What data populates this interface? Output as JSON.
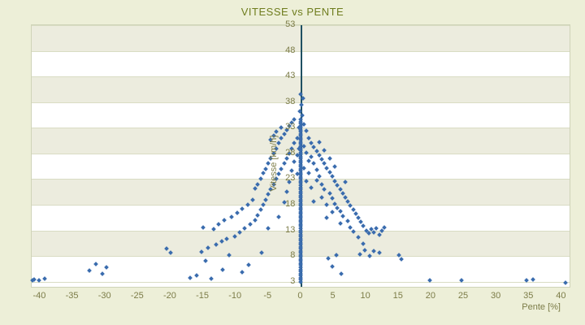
{
  "chart_data": {
    "type": "scatter",
    "title": "VITESSE vs PENTE",
    "xlabel": "Pente [%]",
    "ylabel": "Vitesse [km/h]",
    "xlim": [
      -41.3,
      41.2
    ],
    "ylim": [
      2,
      53
    ],
    "x_ticks": [
      -40,
      -35,
      -30,
      -25,
      -20,
      -15,
      -10,
      -5,
      0,
      5,
      10,
      15,
      20,
      25,
      30,
      35,
      40
    ],
    "y_ticks": [
      3,
      8,
      13,
      18,
      23,
      28,
      33,
      38,
      43,
      48,
      53
    ],
    "grid": "horizontal-bands",
    "legend": "none",
    "marker_color": "#3a6cae",
    "zero_axis_color": "#1f5062",
    "band_color": "#ececde",
    "zero_slope_column": {
      "x": 0,
      "y_min": 3,
      "y_max": 34.8,
      "step": 0.4
    },
    "points": [
      [
        -41.2,
        3.2
      ],
      [
        -40.9,
        3.4
      ],
      [
        -40.2,
        3.3
      ],
      [
        -39.3,
        3.6
      ],
      [
        -32.5,
        5.2
      ],
      [
        -31.5,
        6.4
      ],
      [
        -30.5,
        4.6
      ],
      [
        -29.8,
        5.8
      ],
      [
        -20.6,
        9.4
      ],
      [
        -20,
        8.6
      ],
      [
        -17,
        3.8
      ],
      [
        -16,
        4.2
      ],
      [
        -15.3,
        8.8
      ],
      [
        -15,
        13.6
      ],
      [
        -14.6,
        7
      ],
      [
        -14.2,
        9.6
      ],
      [
        -13.8,
        3.6
      ],
      [
        -13.4,
        13.2
      ],
      [
        -13,
        10.2
      ],
      [
        -12.6,
        14.2
      ],
      [
        -12.2,
        10.8
      ],
      [
        -12,
        5.4
      ],
      [
        -11.8,
        15
      ],
      [
        -11.4,
        11.4
      ],
      [
        -11,
        8.2
      ],
      [
        -10.6,
        15.6
      ],
      [
        -10.2,
        11.8
      ],
      [
        -9.8,
        16.4
      ],
      [
        -9.4,
        12.6
      ],
      [
        -9,
        17.2
      ],
      [
        -9,
        4.8
      ],
      [
        -8.6,
        13.4
      ],
      [
        -8.2,
        18
      ],
      [
        -8,
        6.2
      ],
      [
        -7.8,
        14.2
      ],
      [
        -7.4,
        19
      ],
      [
        -7,
        15
      ],
      [
        -7,
        21.2
      ],
      [
        -6.6,
        16
      ],
      [
        -6.6,
        22
      ],
      [
        -6.2,
        17
      ],
      [
        -6.2,
        23
      ],
      [
        -6,
        8.6
      ],
      [
        -5.8,
        18
      ],
      [
        -5.8,
        24.2
      ],
      [
        -5.4,
        19
      ],
      [
        -5.4,
        25
      ],
      [
        -5,
        20
      ],
      [
        -5,
        26
      ],
      [
        -5,
        13.4
      ],
      [
        -4.6,
        21
      ],
      [
        -4.6,
        27
      ],
      [
        -4.6,
        30.6
      ],
      [
        -4.2,
        22
      ],
      [
        -4.2,
        28
      ],
      [
        -4.2,
        31.4
      ],
      [
        -3.8,
        23
      ],
      [
        -3.8,
        29
      ],
      [
        -3.8,
        32.2
      ],
      [
        -3.4,
        24
      ],
      [
        -3.4,
        30
      ],
      [
        -3.4,
        15.6
      ],
      [
        -3,
        25
      ],
      [
        -3,
        31
      ],
      [
        -3,
        33
      ],
      [
        -2.6,
        26
      ],
      [
        -2.6,
        31.8
      ],
      [
        -2.6,
        18.4
      ],
      [
        -2.2,
        27
      ],
      [
        -2.2,
        32.6
      ],
      [
        -2.2,
        20.6
      ],
      [
        -1.8,
        28
      ],
      [
        -1.8,
        33.4
      ],
      [
        -1.8,
        22.4
      ],
      [
        -1.4,
        29
      ],
      [
        -1.4,
        34
      ],
      [
        -1.4,
        24.6
      ],
      [
        -1,
        30
      ],
      [
        -1,
        34.6
      ],
      [
        -1,
        26.4
      ],
      [
        -0.6,
        31
      ],
      [
        -0.6,
        27.6
      ],
      [
        -0.6,
        24
      ],
      [
        -0.3,
        33
      ],
      [
        -0.3,
        29
      ],
      [
        -0.2,
        36.2
      ],
      [
        0.1,
        37.4
      ],
      [
        0.3,
        38.8
      ],
      [
        -0.1,
        39.6
      ],
      [
        0.2,
        35.4
      ],
      [
        0.4,
        33.6
      ],
      [
        0.4,
        29.4
      ],
      [
        0.4,
        25.2
      ],
      [
        0.8,
        32.4
      ],
      [
        0.8,
        28.2
      ],
      [
        0.8,
        22.6
      ],
      [
        1.2,
        31
      ],
      [
        1.2,
        26.6
      ],
      [
        1.2,
        24.2
      ],
      [
        1.6,
        30
      ],
      [
        1.6,
        27.4
      ],
      [
        1.6,
        21.4
      ],
      [
        2,
        29.2
      ],
      [
        2,
        26
      ],
      [
        2,
        18.6
      ],
      [
        2.4,
        28.4
      ],
      [
        2.4,
        24.8
      ],
      [
        2.4,
        22.8
      ],
      [
        2.8,
        27.6
      ],
      [
        2.8,
        23.6
      ],
      [
        2.8,
        30.2
      ],
      [
        3.2,
        26.8
      ],
      [
        3.2,
        22
      ],
      [
        3.2,
        19.4
      ],
      [
        3.6,
        26
      ],
      [
        3.6,
        28.6
      ],
      [
        3.6,
        21
      ],
      [
        4,
        25.2
      ],
      [
        4,
        18
      ],
      [
        4,
        15.4
      ],
      [
        4.2,
        7.6
      ],
      [
        4.4,
        24.4
      ],
      [
        4.4,
        20.2
      ],
      [
        4.4,
        27
      ],
      [
        4.8,
        23.6
      ],
      [
        4.8,
        16.6
      ],
      [
        4.8,
        19.2
      ],
      [
        4.8,
        6
      ],
      [
        5.2,
        22.6
      ],
      [
        5.2,
        18.2
      ],
      [
        5.2,
        25.4
      ],
      [
        5.4,
        8.2
      ],
      [
        5.6,
        21.8
      ],
      [
        5.6,
        17.4
      ],
      [
        6,
        21
      ],
      [
        6,
        14.4
      ],
      [
        6,
        16.8
      ],
      [
        6.2,
        4.6
      ],
      [
        6.4,
        20.2
      ],
      [
        6.4,
        15.8
      ],
      [
        6.8,
        19.4
      ],
      [
        6.8,
        22.4
      ],
      [
        7.2,
        18.6
      ],
      [
        7.2,
        14.8
      ],
      [
        7.6,
        17.8
      ],
      [
        7.6,
        13.6
      ],
      [
        8,
        17
      ],
      [
        8,
        12.8
      ],
      [
        8.4,
        16.2
      ],
      [
        8.8,
        15.4
      ],
      [
        8.8,
        11.6
      ],
      [
        9,
        8.4
      ],
      [
        9.2,
        14.6
      ],
      [
        9.6,
        13.8
      ],
      [
        9.6,
        10.4
      ],
      [
        9.8,
        9.2
      ],
      [
        10,
        13
      ],
      [
        10.4,
        12.4
      ],
      [
        10.6,
        8
      ],
      [
        10.8,
        13.2
      ],
      [
        11.2,
        12.6
      ],
      [
        11.2,
        9
      ],
      [
        11.6,
        13.4
      ],
      [
        12,
        12.2
      ],
      [
        12,
        8.6
      ],
      [
        12.4,
        13
      ],
      [
        12.8,
        13.6
      ],
      [
        15,
        8.2
      ],
      [
        15.4,
        7.4
      ],
      [
        19.8,
        3.2
      ],
      [
        24.6,
        3.2
      ],
      [
        34.6,
        3.2
      ],
      [
        35.6,
        3.4
      ],
      [
        40.6,
        2.8
      ]
    ]
  }
}
